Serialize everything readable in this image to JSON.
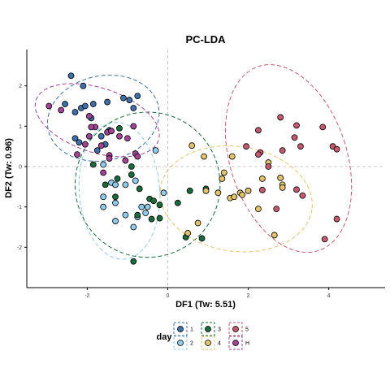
{
  "chart_data": {
    "type": "scatter",
    "title": "PC-LDA",
    "xlabel": "DF1 (Tw: 5.51)",
    "ylabel": "DF2 (Tw: 0.96)",
    "xlim": [
      -3.5,
      5.4
    ],
    "ylim": [
      -3.0,
      2.9
    ],
    "x_ticks": [
      -2,
      0,
      2,
      4
    ],
    "y_ticks": [
      -2,
      -1,
      0,
      1,
      2
    ],
    "x_tick_labels": [
      "-2",
      "0",
      "2",
      "4"
    ],
    "y_tick_labels": [
      "-2",
      "-1",
      "0",
      "1",
      "2"
    ],
    "grid": false,
    "reference_lines": {
      "x": 0,
      "y": 0,
      "style": "dashed"
    },
    "legend": {
      "title": "day",
      "placement": "bottom"
    },
    "series": [
      {
        "name": "1",
        "color": "#3f6fa8",
        "points": [
          [
            -2.4,
            2.25
          ],
          [
            -2.1,
            2.0
          ],
          [
            -2.55,
            1.55
          ],
          [
            -2.15,
            1.45
          ],
          [
            -2.05,
            1.5
          ],
          [
            -1.85,
            1.55
          ],
          [
            -1.5,
            1.6
          ],
          [
            -1.1,
            1.7
          ],
          [
            -0.95,
            1.65
          ],
          [
            -0.75,
            1.75
          ],
          [
            -0.85,
            1.45
          ],
          [
            -2.3,
            1.35
          ],
          [
            -1.9,
            1.2
          ],
          [
            -2.3,
            0.7
          ],
          [
            -2.2,
            0.6
          ],
          [
            -1.65,
            0.75
          ],
          [
            -1.45,
            0.9
          ],
          [
            -1.75,
            0.4
          ],
          [
            -1.55,
            0.55
          ]
        ]
      },
      {
        "name": "2",
        "color": "#8fcbea",
        "points": [
          [
            -1.6,
            0.05
          ],
          [
            -1.4,
            -0.4
          ],
          [
            -1.3,
            -0.45
          ],
          [
            -1.6,
            -0.75
          ],
          [
            -1.3,
            -0.9
          ],
          [
            -1.6,
            -1.0
          ],
          [
            -1.3,
            -1.35
          ],
          [
            -1.05,
            -1.2
          ],
          [
            -0.8,
            -0.35
          ],
          [
            -1.05,
            -0.45
          ],
          [
            -0.65,
            -1.0
          ],
          [
            -0.5,
            -1.0
          ],
          [
            -0.55,
            -1.15
          ],
          [
            -0.75,
            -1.25
          ],
          [
            -0.85,
            -1.5
          ],
          [
            -0.1,
            -0.65
          ],
          [
            -0.3,
            0.4
          ]
        ]
      },
      {
        "name": "3",
        "color": "#1a6b3c",
        "points": [
          [
            -1.85,
            0.05
          ],
          [
            -1.55,
            -0.45
          ],
          [
            -1.25,
            -0.3
          ],
          [
            -1.3,
            -0.75
          ],
          [
            -1.2,
            0.95
          ],
          [
            -0.9,
            0.0
          ],
          [
            -0.9,
            -0.2
          ],
          [
            -0.7,
            -0.55
          ],
          [
            -0.75,
            -1.2
          ],
          [
            -0.45,
            -0.8
          ],
          [
            -0.35,
            -0.85
          ],
          [
            -0.2,
            -0.95
          ],
          [
            -0.4,
            -1.3
          ],
          [
            -0.2,
            -1.28
          ],
          [
            -0.85,
            -2.35
          ],
          [
            0.25,
            -0.9
          ],
          [
            0.55,
            -0.6
          ],
          [
            0.95,
            -0.55
          ],
          [
            0.45,
            -1.75
          ],
          [
            0.85,
            -1.78
          ]
        ]
      },
      {
        "name": "4",
        "color": "#e2c36b",
        "points": [
          [
            0.6,
            0.52
          ],
          [
            0.9,
            0.25
          ],
          [
            1.6,
            0.25
          ],
          [
            1.4,
            -0.15
          ],
          [
            1.35,
            -0.3
          ],
          [
            1.25,
            -0.65
          ],
          [
            0.95,
            -0.6
          ],
          [
            1.55,
            -0.78
          ],
          [
            1.65,
            -0.75
          ],
          [
            1.8,
            -0.65
          ],
          [
            1.85,
            -0.7
          ],
          [
            2.0,
            -0.6
          ],
          [
            2.25,
            -1.05
          ],
          [
            2.35,
            -0.3
          ],
          [
            2.5,
            0.1
          ],
          [
            2.8,
            -0.28
          ],
          [
            2.85,
            -0.45
          ],
          [
            2.85,
            -0.52
          ],
          [
            2.65,
            -1.7
          ],
          [
            0.75,
            -1.4
          ],
          [
            0.5,
            -1.65
          ]
        ]
      },
      {
        "name": "5",
        "color": "#c45a6e",
        "points": [
          [
            1.95,
            0.5
          ],
          [
            2.25,
            0.9
          ],
          [
            2.3,
            0.35
          ],
          [
            2.25,
            0.3
          ],
          [
            2.5,
            0.0
          ],
          [
            2.35,
            -0.58
          ],
          [
            2.8,
            1.22
          ],
          [
            2.85,
            0.4
          ],
          [
            3.2,
            1.02
          ],
          [
            3.3,
            0.5
          ],
          [
            3.15,
            0.72
          ],
          [
            3.2,
            -0.57
          ],
          [
            3.35,
            -0.72
          ],
          [
            3.85,
            0.98
          ],
          [
            4.1,
            0.5
          ],
          [
            4.2,
            0.43
          ],
          [
            4.2,
            -1.3
          ],
          [
            3.9,
            -1.8
          ],
          [
            2.7,
            -1.05
          ]
        ]
      },
      {
        "name": "H",
        "color": "#a24496",
        "points": [
          [
            -2.95,
            1.5
          ],
          [
            -2.65,
            1.4
          ],
          [
            -1.95,
            1.25
          ],
          [
            -1.8,
            0.98
          ],
          [
            -1.95,
            0.75
          ],
          [
            -2.05,
            0.55
          ],
          [
            -1.9,
            0.98
          ],
          [
            -1.5,
            0.85
          ],
          [
            -1.4,
            0.88
          ],
          [
            -1.2,
            0.75
          ],
          [
            -1.0,
            0.7
          ],
          [
            -0.85,
            1.0
          ],
          [
            -1.65,
            0.52
          ],
          [
            -1.6,
            -0.15
          ],
          [
            -1.45,
            0.28
          ],
          [
            -1.45,
            0.2
          ],
          [
            -0.8,
            0.32
          ],
          [
            -1.05,
            0.15
          ],
          [
            -2.25,
            0.3
          ],
          [
            -0.75,
            0.25
          ]
        ]
      }
    ],
    "ellipses": [
      {
        "series": "1",
        "cx": -1.6,
        "cy": 1.2,
        "rx": 1.4,
        "ry": 1.05,
        "angle": 12
      },
      {
        "series": "2",
        "cx": -1.2,
        "cy": -0.6,
        "rx": 1.0,
        "ry": 1.7,
        "angle": 4
      },
      {
        "series": "3",
        "cx": -0.5,
        "cy": -0.45,
        "rx": 1.8,
        "ry": 1.8,
        "angle": -22
      },
      {
        "series": "4",
        "cx": 1.7,
        "cy": -0.8,
        "rx": 1.9,
        "ry": 1.3,
        "angle": -8
      },
      {
        "series": "5",
        "cx": 3.0,
        "cy": 0.2,
        "rx": 1.45,
        "ry": 2.4,
        "angle": 18
      },
      {
        "series": "H",
        "cx": -1.75,
        "cy": 1.15,
        "rx": 1.6,
        "ry": 0.8,
        "angle": -18
      }
    ]
  }
}
